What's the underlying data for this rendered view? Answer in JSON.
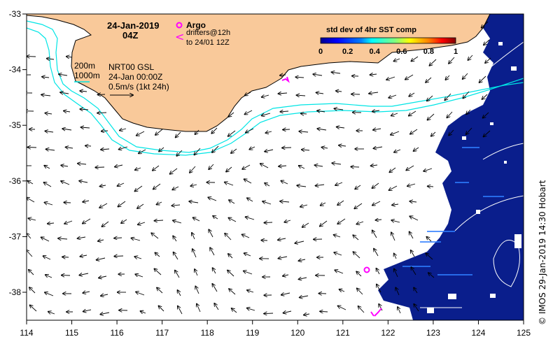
{
  "map": {
    "date_title": "24-Jan-2019",
    "time_title": "04Z",
    "argo_label": "Argo",
    "drifter_symbol": "<",
    "drifters_label_1": "drifters@12h",
    "drifters_label_2": "to 24/01 12Z",
    "contour_200": "200m",
    "contour_1000": "1000m",
    "model_label": "NRT00 GSL",
    "model_time": "24-Jan 00:00Z",
    "scale_label": "0.5m/s (1kt 24h)",
    "colorbar": {
      "title": "std dev of 4hr SST comp",
      "ticks": [
        "0",
        "0.2",
        "0.4",
        "0.6",
        "0.8",
        "1"
      ],
      "colors": [
        "#00008f",
        "#0000ff",
        "#0080ff",
        "#00ffff",
        "#80ff80",
        "#ffff00",
        "#ff8000",
        "#ff0000",
        "#800000"
      ]
    },
    "x_ticks": [
      "114",
      "115",
      "116",
      "117",
      "118",
      "119",
      "120",
      "121",
      "122",
      "123",
      "124",
      "125"
    ],
    "y_ticks": [
      "-33",
      "-34",
      "-35",
      "-36",
      "-37",
      "-38"
    ],
    "credit": "© IMOS 29-Jan-2019 14:30 Hobart",
    "colors": {
      "land": "#f9c99a",
      "ocean": "#ffffff",
      "contour": "#00e5e5",
      "argo": "#ff00ff",
      "sst_data": "#0a1e8c"
    }
  }
}
